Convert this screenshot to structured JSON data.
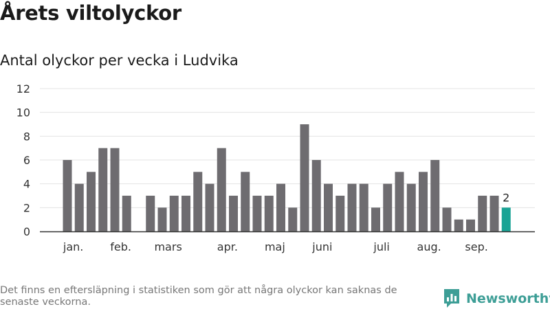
{
  "header": {
    "title": "Årets viltolyckor",
    "subtitle": "Antal olyckor per vecka i Ludvika"
  },
  "footer": {
    "note": "Det finns en eftersläpning i statistiken som gör att några olyckor kan saknas de senaste veckorna.",
    "brand": "Newsworthy",
    "brand_icon": "newsworthy-logo-icon"
  },
  "colors": {
    "bar": "#6e6c70",
    "highlight": "#1aa395",
    "grid": "#e3e3e3",
    "axis": "#333333",
    "brand": "#3d9e96"
  },
  "chart_data": {
    "type": "bar",
    "title": "",
    "xlabel": "",
    "ylabel": "",
    "ylim": [
      0,
      12
    ],
    "yticks": [
      0,
      2,
      4,
      6,
      8,
      10,
      12
    ],
    "weeks": [
      1,
      2,
      3,
      4,
      5,
      6,
      7,
      8,
      9,
      10,
      11,
      12,
      13,
      14,
      15,
      16,
      17,
      18,
      19,
      20,
      21,
      22,
      23,
      24,
      25,
      26,
      27,
      28,
      29,
      30,
      31,
      32,
      33,
      34,
      35,
      36,
      37,
      38
    ],
    "values": [
      6,
      4,
      5,
      7,
      7,
      3,
      0,
      3,
      2,
      3,
      3,
      5,
      4,
      7,
      3,
      5,
      3,
      3,
      4,
      2,
      9,
      6,
      4,
      3,
      4,
      4,
      2,
      4,
      5,
      4,
      5,
      6,
      2,
      1,
      1,
      3,
      3,
      2
    ],
    "highlight_index": 37,
    "highlight_label": "2",
    "month_labels": [
      {
        "label": "jan.",
        "week": 1.5
      },
      {
        "label": "feb.",
        "week": 5.5
      },
      {
        "label": "mars",
        "week": 9.5
      },
      {
        "label": "apr.",
        "week": 14.5
      },
      {
        "label": "maj",
        "week": 18.5
      },
      {
        "label": "juni",
        "week": 22.5
      },
      {
        "label": "juli",
        "week": 27.5
      },
      {
        "label": "aug.",
        "week": 31.5
      },
      {
        "label": "sep.",
        "week": 35.5
      }
    ]
  }
}
